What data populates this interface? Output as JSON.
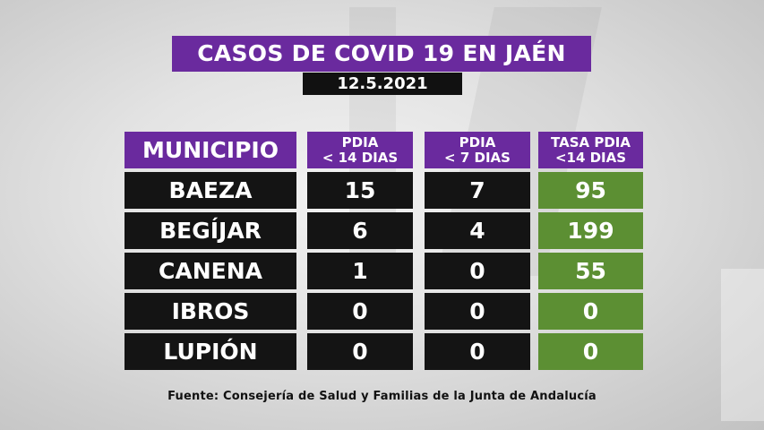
{
  "title": "CASOS DE COVID 19 EN JAÉN",
  "date": "12.5.2021",
  "table": {
    "headers": {
      "municipio": "MUNICIPIO",
      "pdia14": [
        "PDIA",
        "< 14 DIAS"
      ],
      "pdia7": [
        "PDIA",
        "< 7 DIAS"
      ],
      "tasa": [
        "TASA PDIA",
        "<14 DIAS"
      ]
    },
    "rows": [
      {
        "municipio": "BAEZA",
        "pdia14": "15",
        "pdia7": "7",
        "tasa": "95"
      },
      {
        "municipio": "BEGÍJAR",
        "pdia14": "6",
        "pdia7": "4",
        "tasa": "199"
      },
      {
        "municipio": "CANENA",
        "pdia14": "1",
        "pdia7": "0",
        "tasa": "55"
      },
      {
        "municipio": "IBROS",
        "pdia14": "0",
        "pdia7": "0",
        "tasa": "0"
      },
      {
        "municipio": "LUPIÓN",
        "pdia14": "0",
        "pdia7": "0",
        "tasa": "0"
      }
    ]
  },
  "source": "Fuente:  Consejería de Salud y Familias de la Junta de Andalucía",
  "colors": {
    "header_purple": "#6a2a9e",
    "cell_dark": "#141414",
    "cell_green": "#5c8f33"
  }
}
